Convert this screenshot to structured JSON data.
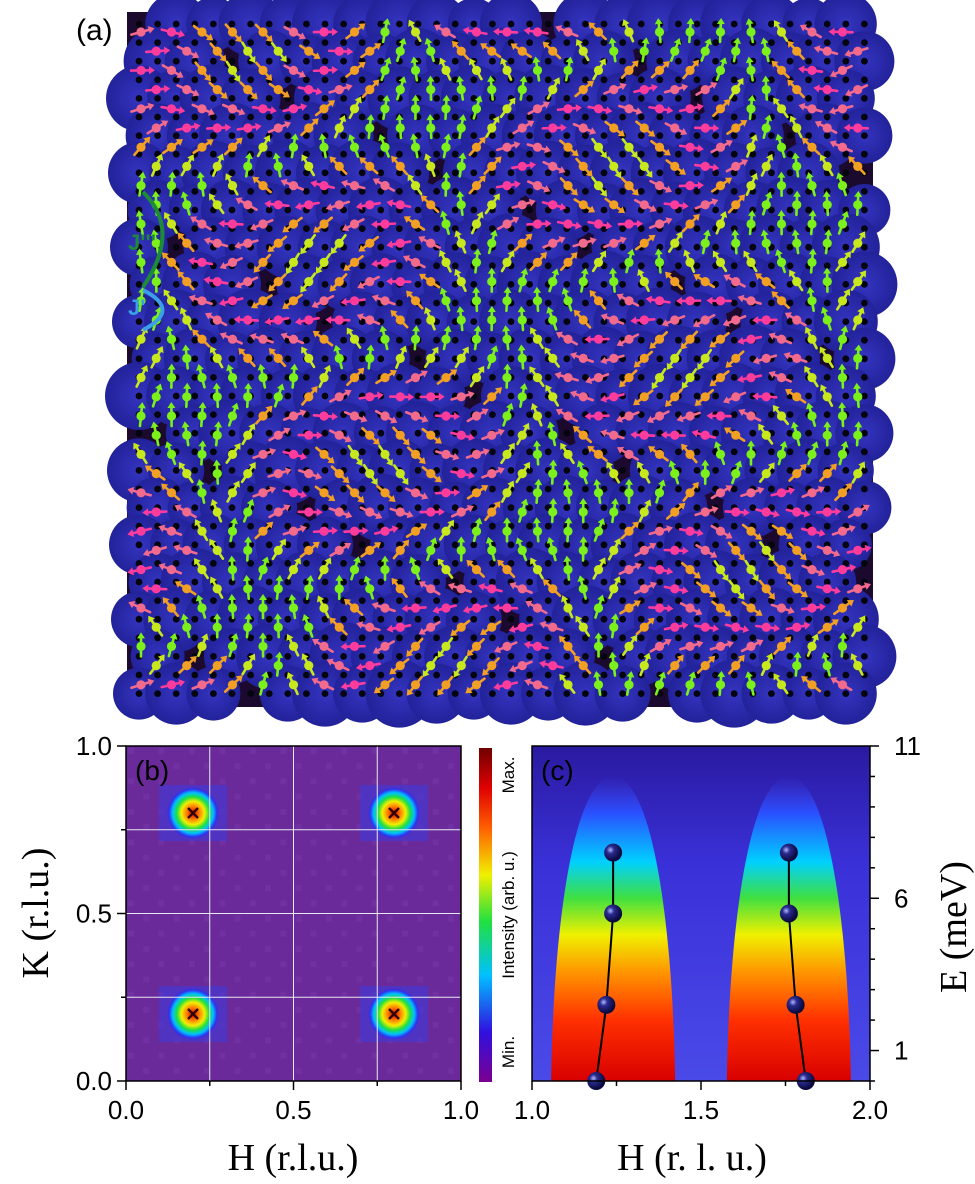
{
  "panel_a": {
    "label": "(a)",
    "bond_labels": [
      "J'''",
      "J'"
    ],
    "spin_colors": [
      "#7cf01a",
      "#c8e81e",
      "#f2a024",
      "#f26a8c",
      "#ff3c9c"
    ],
    "background": "#2a2aa8"
  },
  "panel_b": {
    "label": "(b)",
    "colorbar": {
      "max_label": "Max.",
      "title": "Intensity (arb. u.)",
      "min_label": "Min."
    }
  },
  "panel_c": {
    "label": "(c)"
  },
  "chart_data": [
    {
      "type": "heatmap",
      "panel": "b",
      "xlabel": "H (r.l.u.)",
      "ylabel": "K (r.l.u.)",
      "xlim": [
        0.0,
        1.0
      ],
      "ylim": [
        0.0,
        1.0
      ],
      "xticks": [
        "0.0",
        "0.5",
        "1.0"
      ],
      "yticks": [
        "0.0",
        "0.5",
        "1.0"
      ],
      "grid": true,
      "peaks": [
        {
          "h": 0.2,
          "k": 0.8
        },
        {
          "h": 0.8,
          "k": 0.8
        },
        {
          "h": 0.2,
          "k": 0.2
        },
        {
          "h": 0.8,
          "k": 0.2
        }
      ],
      "colorscale": [
        "#7a0090",
        "#3010e0",
        "#00c0ff",
        "#20e040",
        "#f0f000",
        "#ff6000",
        "#e00000",
        "#700000"
      ]
    },
    {
      "type": "heatmap",
      "panel": "c",
      "xlabel": "H (r. l. u.)",
      "ylabel": "E (meV)",
      "xlim": [
        1.0,
        2.0
      ],
      "ylim": [
        0,
        11
      ],
      "xticks": [
        "1.0",
        "1.5",
        "2.0"
      ],
      "yticks": [
        "1",
        "6",
        "11"
      ],
      "dispersion_branches": [
        {
          "points": [
            {
              "h": 1.19,
              "e": 0
            },
            {
              "h": 1.22,
              "e": 2.5
            },
            {
              "h": 1.24,
              "e": 5.5
            },
            {
              "h": 1.24,
              "e": 7.5
            }
          ]
        },
        {
          "points": [
            {
              "h": 1.81,
              "e": 0
            },
            {
              "h": 1.78,
              "e": 2.5
            },
            {
              "h": 1.76,
              "e": 5.5
            },
            {
              "h": 1.76,
              "e": 7.5
            }
          ]
        }
      ]
    }
  ]
}
